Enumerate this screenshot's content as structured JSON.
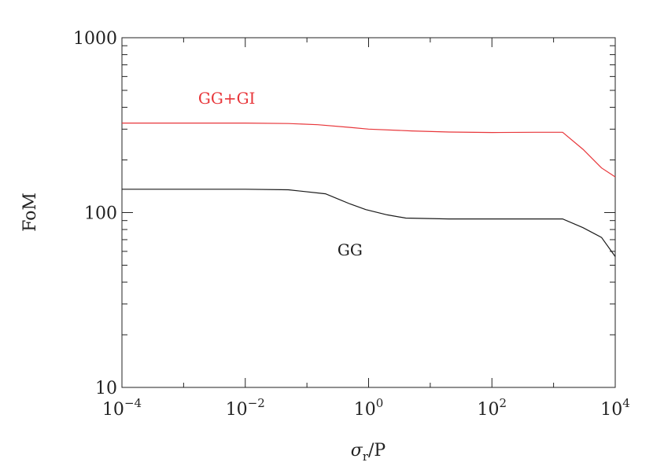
{
  "chart_data": {
    "type": "line",
    "title": "",
    "xlabel": "σr/P",
    "ylabel": "FoM",
    "xscale": "log",
    "yscale": "log",
    "xlim": [
      0.0001,
      10000
    ],
    "ylim": [
      10,
      1000
    ],
    "grid": false,
    "x_ticks": [
      {
        "value": 0.0001,
        "base": "10",
        "exp": "−4"
      },
      {
        "value": 0.01,
        "base": "10",
        "exp": "−2"
      },
      {
        "value": 1,
        "base": "10",
        "exp": "0"
      },
      {
        "value": 100,
        "base": "10",
        "exp": "2"
      },
      {
        "value": 10000,
        "base": "10",
        "exp": "4"
      }
    ],
    "y_ticks": [
      {
        "value": 10,
        "label": "10"
      },
      {
        "value": 100,
        "label": "100"
      },
      {
        "value": 1000,
        "label": "1000"
      }
    ],
    "series": [
      {
        "name": "GG+GI",
        "color": "#e8363a",
        "label_at": [
          0.005,
          420
        ],
        "points": [
          [
            0.0001,
            325
          ],
          [
            0.001,
            325
          ],
          [
            0.01,
            325
          ],
          [
            0.05,
            323
          ],
          [
            0.15,
            318
          ],
          [
            0.5,
            307
          ],
          [
            1,
            300
          ],
          [
            5,
            293
          ],
          [
            20,
            289
          ],
          [
            100,
            287
          ],
          [
            500,
            288
          ],
          [
            1400,
            288
          ],
          [
            3000,
            230
          ],
          [
            6000,
            180
          ],
          [
            10000,
            160
          ]
        ]
      },
      {
        "name": "GG",
        "color": "#1a1a1a",
        "label_at": [
          0.5,
          57
        ],
        "points": [
          [
            0.0001,
            136
          ],
          [
            0.001,
            136
          ],
          [
            0.01,
            136
          ],
          [
            0.05,
            135
          ],
          [
            0.2,
            128
          ],
          [
            0.5,
            112
          ],
          [
            0.9,
            104
          ],
          [
            2,
            97
          ],
          [
            4,
            93
          ],
          [
            20,
            92
          ],
          [
            100,
            92
          ],
          [
            500,
            92
          ],
          [
            1400,
            92
          ],
          [
            3000,
            82
          ],
          [
            6000,
            72
          ],
          [
            10000,
            56
          ]
        ]
      }
    ]
  }
}
